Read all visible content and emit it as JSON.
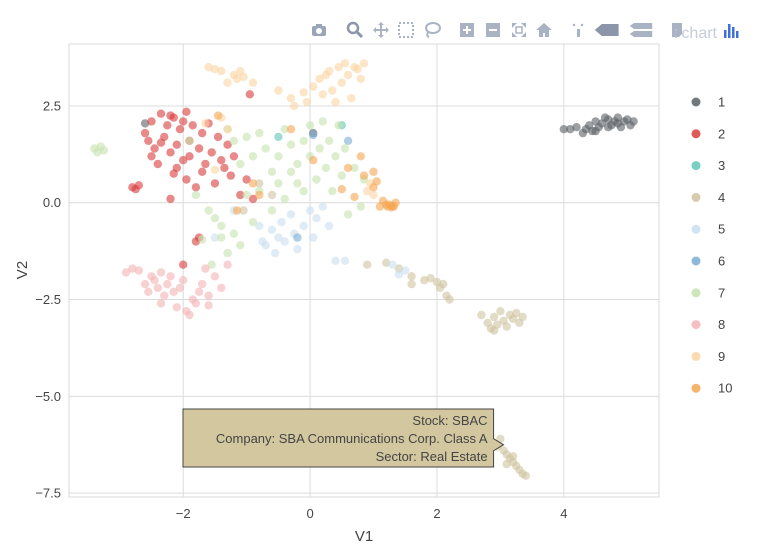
{
  "toolbar": {
    "buttons": [
      {
        "name": "camera-icon",
        "color": "#9aa5b8"
      },
      {
        "name": "zoom-icon",
        "color": "#8c96aa"
      },
      {
        "name": "pan-icon",
        "color": "#aab3c3"
      },
      {
        "name": "box-select-icon",
        "color": "#aab3c3"
      },
      {
        "name": "lasso-select-icon",
        "color": "#aab3c3"
      },
      {
        "name": "zoom-in-icon",
        "color": "#aab3c3"
      },
      {
        "name": "zoom-out-icon",
        "color": "#aab3c3"
      },
      {
        "name": "autoscale-icon",
        "color": "#aab3c3"
      },
      {
        "name": "reset-axes-icon",
        "color": "#aab3c3"
      },
      {
        "name": "spike-lines-icon",
        "color": "#aab3c3"
      },
      {
        "name": "hover-closest-icon",
        "color": "#8c96aa"
      },
      {
        "name": "hover-compare-icon",
        "color": "#aab3c3"
      },
      {
        "name": "edit-chart-icon",
        "color": "#aab3c3"
      },
      {
        "name": "plotly-logo-icon",
        "color": "#3f6fd8"
      }
    ],
    "edit_label": "Edit chart"
  },
  "tooltip": {
    "lines": [
      "Stock: SBAC",
      "Company: SBA Communications Corp. Class A",
      "Sector: Real Estate"
    ],
    "bgcolor": "#d3c7a0",
    "point": [
      3.05,
      -6.25
    ]
  },
  "chart_data": {
    "type": "scatter",
    "xlabel": "V1",
    "ylabel": "V2",
    "xlim": [
      -3.8,
      5.5
    ],
    "ylim": [
      -7.6,
      4.1
    ],
    "xticks": [
      -2,
      0,
      2,
      4
    ],
    "yticks": [
      -7.5,
      -5,
      -2.5,
      0,
      2.5
    ],
    "xtick_labels": [
      "−2",
      "0",
      "2",
      "4"
    ],
    "ytick_labels": [
      "−7.5",
      "−5.0",
      "−2.5",
      "0.0",
      "2.5"
    ],
    "grid": true,
    "legend_position": "right",
    "series": [
      {
        "name": "1",
        "color": "#5a6066",
        "points": [
          [
            4.0,
            1.9
          ],
          [
            4.1,
            1.9
          ],
          [
            4.2,
            1.95
          ],
          [
            4.3,
            1.8
          ],
          [
            4.35,
            1.9
          ],
          [
            4.4,
            2.0
          ],
          [
            4.45,
            1.85
          ],
          [
            4.5,
            2.1
          ],
          [
            4.55,
            1.95
          ],
          [
            4.6,
            2.05
          ],
          [
            4.65,
            2.2
          ],
          [
            4.7,
            2.15
          ],
          [
            4.75,
            2.0
          ],
          [
            4.8,
            2.1
          ],
          [
            4.85,
            2.05
          ],
          [
            4.9,
            1.95
          ],
          [
            4.95,
            2.1
          ],
          [
            5.0,
            2.15
          ],
          [
            5.05,
            2.0
          ],
          [
            5.1,
            2.1
          ],
          [
            4.5,
            1.85
          ],
          [
            4.7,
            1.95
          ],
          [
            4.85,
            2.2
          ],
          [
            -2.6,
            2.05
          ],
          [
            0.05,
            1.8
          ]
        ]
      },
      {
        "name": "2",
        "color": "#d93c3c",
        "points": [
          [
            -2.8,
            0.4
          ],
          [
            -2.75,
            0.35
          ],
          [
            -2.7,
            0.45
          ],
          [
            -2.6,
            1.8
          ],
          [
            -2.55,
            1.6
          ],
          [
            -2.5,
            1.2
          ],
          [
            -2.5,
            2.1
          ],
          [
            -2.45,
            1.4
          ],
          [
            -2.4,
            1.0
          ],
          [
            -2.35,
            2.3
          ],
          [
            -2.3,
            1.7
          ],
          [
            -2.25,
            2.0
          ],
          [
            -2.2,
            1.3
          ],
          [
            -2.2,
            0.1
          ],
          [
            -2.15,
            2.2
          ],
          [
            -2.1,
            1.5
          ],
          [
            -2.1,
            0.9
          ],
          [
            -2.05,
            1.9
          ],
          [
            -2.0,
            2.1
          ],
          [
            -2.0,
            1.1
          ],
          [
            -1.95,
            0.6
          ],
          [
            -1.9,
            1.6
          ],
          [
            -1.9,
            1.2
          ],
          [
            -1.85,
            2.0
          ],
          [
            -1.8,
            0.4
          ],
          [
            -1.75,
            1.4
          ],
          [
            -1.7,
            0.8
          ],
          [
            -1.7,
            1.8
          ],
          [
            -1.65,
            1.0
          ],
          [
            -1.6,
            2.05
          ],
          [
            -1.55,
            1.3
          ],
          [
            -1.5,
            0.5
          ],
          [
            -1.45,
            1.7
          ],
          [
            -1.4,
            1.1
          ],
          [
            -1.35,
            0.9
          ],
          [
            -1.3,
            1.5
          ],
          [
            -1.25,
            0.7
          ],
          [
            -1.2,
            1.2
          ],
          [
            -1.1,
            0.2
          ],
          [
            -1.0,
            0.6
          ],
          [
            -0.95,
            2.8
          ],
          [
            -0.9,
            0.1
          ],
          [
            -1.8,
            -1.0
          ],
          [
            -2.0,
            -1.6
          ],
          [
            -1.75,
            -0.9
          ],
          [
            -2.2,
            2.25
          ],
          [
            -1.95,
            2.35
          ],
          [
            -2.35,
            1.55
          ],
          [
            -2.15,
            0.75
          ]
        ]
      },
      {
        "name": "3",
        "color": "#5fc7b5",
        "points": [
          [
            -0.5,
            1.7
          ],
          [
            0.5,
            2.0
          ]
        ]
      },
      {
        "name": "4",
        "color": "#cfc39f",
        "points": [
          [
            0.9,
            -1.6
          ],
          [
            1.2,
            -1.55
          ],
          [
            1.4,
            -1.7
          ],
          [
            1.6,
            -1.9
          ],
          [
            1.6,
            -2.1
          ],
          [
            1.8,
            -2.0
          ],
          [
            1.9,
            -1.95
          ],
          [
            2.0,
            -2.05
          ],
          [
            2.05,
            -2.2
          ],
          [
            2.1,
            -2.1
          ],
          [
            2.15,
            -2.4
          ],
          [
            2.2,
            -2.5
          ],
          [
            2.7,
            -2.9
          ],
          [
            2.8,
            -3.1
          ],
          [
            2.85,
            -3.25
          ],
          [
            2.9,
            -2.95
          ],
          [
            2.95,
            -3.15
          ],
          [
            3.0,
            -2.8
          ],
          [
            3.05,
            -3.05
          ],
          [
            3.1,
            -3.2
          ],
          [
            3.15,
            -2.9
          ],
          [
            3.2,
            -3.0
          ],
          [
            3.25,
            -2.85
          ],
          [
            3.3,
            -3.1
          ],
          [
            3.35,
            -2.95
          ],
          [
            2.9,
            -3.3
          ],
          [
            3.0,
            -6.1
          ],
          [
            2.95,
            -6.3
          ],
          [
            3.05,
            -6.4
          ],
          [
            3.1,
            -6.5
          ],
          [
            3.15,
            -6.6
          ],
          [
            3.2,
            -6.7
          ],
          [
            3.25,
            -6.8
          ],
          [
            3.3,
            -6.9
          ],
          [
            3.35,
            -7.0
          ],
          [
            3.4,
            -7.05
          ],
          [
            3.2,
            -6.55
          ],
          [
            3.1,
            -6.75
          ],
          [
            -1.05,
            -0.2
          ],
          [
            -0.8,
            0.5
          ],
          [
            -0.6,
            0.2
          ]
        ]
      },
      {
        "name": "5",
        "color": "#c9dfee",
        "points": [
          [
            -0.8,
            -0.6
          ],
          [
            -0.75,
            -1.0
          ],
          [
            -0.7,
            -1.1
          ],
          [
            -0.6,
            -0.7
          ],
          [
            -0.55,
            -1.3
          ],
          [
            -0.5,
            -0.9
          ],
          [
            -0.45,
            -0.5
          ],
          [
            -0.4,
            -1.0
          ],
          [
            -0.3,
            -0.3
          ],
          [
            -0.25,
            -0.8
          ],
          [
            -0.2,
            -1.2
          ],
          [
            -0.1,
            -0.6
          ],
          [
            0.0,
            -0.2
          ],
          [
            0.05,
            -0.9
          ],
          [
            0.1,
            -0.4
          ],
          [
            0.2,
            -0.1
          ],
          [
            0.3,
            -0.6
          ],
          [
            0.4,
            -1.5
          ],
          [
            0.55,
            -1.5
          ],
          [
            -1.2,
            -0.2
          ],
          [
            -1.5,
            -0.9
          ],
          [
            1.3,
            -1.6
          ],
          [
            1.4,
            -1.85
          ],
          [
            1.5,
            -1.75
          ]
        ]
      },
      {
        "name": "6",
        "color": "#7aaed3",
        "points": [
          [
            0.05,
            1.75
          ],
          [
            0.6,
            1.6
          ],
          [
            -0.2,
            -0.9
          ]
        ]
      },
      {
        "name": "7",
        "color": "#c6e3ae",
        "points": [
          [
            -3.4,
            1.4
          ],
          [
            -3.35,
            1.3
          ],
          [
            -3.3,
            1.45
          ],
          [
            -3.25,
            1.35
          ],
          [
            -1.9,
            1.6
          ],
          [
            -1.8,
            0.2
          ],
          [
            -1.6,
            -0.2
          ],
          [
            -1.5,
            -0.4
          ],
          [
            -1.4,
            -0.6
          ],
          [
            -1.4,
            -0.9
          ],
          [
            -1.3,
            1.9
          ],
          [
            -1.2,
            1.6
          ],
          [
            -1.2,
            -0.8
          ],
          [
            -1.1,
            1.0
          ],
          [
            -1.1,
            -1.1
          ],
          [
            -1.0,
            1.7
          ],
          [
            -1.0,
            0.2
          ],
          [
            -0.9,
            1.2
          ],
          [
            -0.9,
            -0.5
          ],
          [
            -0.8,
            1.8
          ],
          [
            -0.8,
            0.3
          ],
          [
            -0.7,
            1.4
          ],
          [
            -0.6,
            0.8
          ],
          [
            -0.6,
            -0.2
          ],
          [
            -0.5,
            1.2
          ],
          [
            -0.5,
            0.5
          ],
          [
            -0.4,
            1.9
          ],
          [
            -0.4,
            0.1
          ],
          [
            -0.3,
            1.5
          ],
          [
            -0.3,
            0.8
          ],
          [
            -0.2,
            1.0
          ],
          [
            -0.2,
            0.5
          ],
          [
            -0.1,
            1.6
          ],
          [
            -0.1,
            0.3
          ],
          [
            0.0,
            2.0
          ],
          [
            0.0,
            1.2
          ],
          [
            0.1,
            0.6
          ],
          [
            0.15,
            1.4
          ],
          [
            0.2,
            2.1
          ],
          [
            0.25,
            0.9
          ],
          [
            0.3,
            1.6
          ],
          [
            0.35,
            0.3
          ],
          [
            0.4,
            1.2
          ],
          [
            0.45,
            2.0
          ],
          [
            0.5,
            0.7
          ],
          [
            0.55,
            1.4
          ],
          [
            0.6,
            -0.3
          ],
          [
            0.7,
            0.9
          ],
          [
            0.8,
            -0.1
          ],
          [
            0.85,
            0.6
          ],
          [
            -1.7,
            -0.95
          ],
          [
            -1.3,
            -1.3
          ],
          [
            -1.55,
            -1.6
          ]
        ]
      },
      {
        "name": "8",
        "color": "#f4b4b6",
        "points": [
          [
            -2.9,
            -1.8
          ],
          [
            -2.8,
            -1.7
          ],
          [
            -2.7,
            -1.75
          ],
          [
            -2.6,
            -2.1
          ],
          [
            -2.55,
            -2.3
          ],
          [
            -2.5,
            -1.9
          ],
          [
            -2.45,
            -2.0
          ],
          [
            -2.4,
            -2.2
          ],
          [
            -2.35,
            -1.8
          ],
          [
            -2.3,
            -2.4
          ],
          [
            -2.25,
            -2.1
          ],
          [
            -2.2,
            -1.9
          ],
          [
            -2.15,
            -2.3
          ],
          [
            -2.1,
            -2.7
          ],
          [
            -2.05,
            -2.2
          ],
          [
            -2.0,
            -2.0
          ],
          [
            -1.95,
            -2.8
          ],
          [
            -1.9,
            -2.9
          ],
          [
            -1.85,
            -2.5
          ],
          [
            -1.8,
            -2.6
          ],
          [
            -1.75,
            -2.3
          ],
          [
            -1.7,
            -2.1
          ],
          [
            -1.65,
            -1.7
          ],
          [
            -1.6,
            -2.4
          ],
          [
            -1.5,
            -1.9
          ],
          [
            -1.4,
            -2.2
          ],
          [
            -1.3,
            -1.6
          ],
          [
            -1.6,
            -2.65
          ],
          [
            -2.35,
            -2.6
          ]
        ]
      },
      {
        "name": "9",
        "color": "#fbd3a2",
        "points": [
          [
            -1.6,
            3.5
          ],
          [
            -1.5,
            3.45
          ],
          [
            -1.4,
            3.4
          ],
          [
            -1.3,
            3.1
          ],
          [
            -1.2,
            3.3
          ],
          [
            -1.15,
            3.2
          ],
          [
            -1.1,
            3.4
          ],
          [
            -1.05,
            3.25
          ],
          [
            -0.9,
            3.1
          ],
          [
            -0.5,
            2.9
          ],
          [
            -0.3,
            2.7
          ],
          [
            -0.25,
            2.5
          ],
          [
            -0.1,
            2.85
          ],
          [
            0.05,
            3.0
          ],
          [
            0.15,
            3.2
          ],
          [
            0.2,
            2.8
          ],
          [
            0.25,
            3.3
          ],
          [
            0.3,
            3.4
          ],
          [
            0.35,
            2.9
          ],
          [
            0.45,
            3.5
          ],
          [
            0.5,
            3.1
          ],
          [
            0.55,
            3.6
          ],
          [
            0.6,
            3.3
          ],
          [
            0.65,
            2.7
          ],
          [
            0.7,
            3.5
          ],
          [
            0.75,
            3.45
          ],
          [
            0.8,
            3.2
          ],
          [
            0.85,
            3.6
          ],
          [
            0.4,
            2.6
          ],
          [
            -0.05,
            2.6
          ],
          [
            -1.65,
            2.05
          ],
          [
            -1.4,
            2.2
          ],
          [
            -1.3,
            1.9
          ],
          [
            -1.5,
            0.85
          ],
          [
            0.95,
            0.5
          ],
          [
            1.0,
            0.2
          ],
          [
            0.9,
            0.3
          ]
        ]
      },
      {
        "name": "10",
        "color": "#f5a652",
        "points": [
          [
            -1.45,
            2.25
          ],
          [
            -0.9,
            0.5
          ],
          [
            -0.8,
            0.2
          ],
          [
            -0.3,
            1.9
          ],
          [
            0.05,
            1.1
          ],
          [
            0.5,
            0.35
          ],
          [
            0.7,
            0.15
          ],
          [
            0.85,
            0.7
          ],
          [
            1.0,
            0.4
          ],
          [
            1.05,
            0.55
          ],
          [
            1.1,
            -0.1
          ],
          [
            1.15,
            0.05
          ],
          [
            1.2,
            -0.05
          ],
          [
            1.22,
            -0.1
          ],
          [
            1.25,
            -0.05
          ],
          [
            1.28,
            -0.12
          ],
          [
            1.3,
            -0.08
          ],
          [
            1.32,
            -0.1
          ],
          [
            1.35,
            0.0
          ],
          [
            1.0,
            0.8
          ],
          [
            0.8,
            1.2
          ],
          [
            0.6,
            0.9
          ],
          [
            -1.15,
            -0.2
          ]
        ]
      }
    ]
  }
}
